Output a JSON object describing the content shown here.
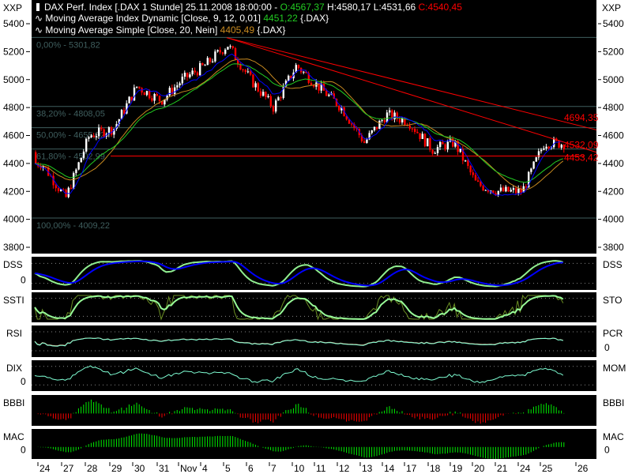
{
  "header": {
    "title": "DAX Perf. Index [.DAX  1 Stunde] 25.11.2008 18:00:00 -",
    "open": "O:4567,37",
    "high": "H:4580,17",
    "low": "L:4531,66",
    "close": "C:4540,45",
    "ma_dynamic_label": "Moving Average Index Dynamic [Close, 9, 12, 0,01]",
    "ma_dynamic_value": "4451,22",
    "ma_dynamic_suffix": "{.DAX}",
    "ma_simple_label": "Moving Average Simple [Close, 20, Nein]",
    "ma_simple_value": "4405,49",
    "ma_simple_suffix": "{.DAX}"
  },
  "axis_unit_left": "XXP",
  "axis_unit_right": "XXP",
  "colors": {
    "up": "#ffffff",
    "down": "#ff0000",
    "ma_dynamic": "#22cc22",
    "ma_simple": "#c88a20",
    "blue": "#0000ff",
    "fib": "#3f5e5e",
    "trend": "#ff0000"
  },
  "chart_data": {
    "type": "candlestick",
    "title": "DAX Perf. Index [.DAX 1 Stunde]",
    "ylim": [
      3800,
      5400
    ],
    "yticks": [
      "5400",
      "5200",
      "5000",
      "4800",
      "4600",
      "4400",
      "4200",
      "4000",
      "3800"
    ],
    "ytick_values": [
      5400,
      5200,
      5000,
      4800,
      4600,
      4400,
      4200,
      4000,
      3800
    ],
    "xtick_labels": [
      "24",
      "27",
      "28",
      "29",
      "30",
      "31",
      "Nov",
      "4",
      "5",
      "6",
      "7",
      "10",
      "11",
      "12",
      "13",
      "14",
      "17",
      "18",
      "19",
      "20",
      "21",
      "24",
      "25",
      "26"
    ],
    "daily_close_path": [
      4400,
      4150,
      4600,
      4650,
      4950,
      4850,
      5000,
      5100,
      5250,
      5000,
      4800,
      5100,
      4950,
      4800,
      4550,
      4750,
      4700,
      4500,
      4550,
      4250,
      4200,
      4200,
      4550,
      4540
    ],
    "fibonacci": [
      {
        "label": "0,00% - 5301,82",
        "value": 5301.82
      },
      {
        "label": "38,20% - 4808,05",
        "value": 4808.05
      },
      {
        "label": "50,00% - 4655,52",
        "value": 4655.52
      },
      {
        "label": "61,80% - 4502,99",
        "value": 4502.99
      },
      {
        "label": "100,00% - 4009,22",
        "value": 4009.22
      }
    ],
    "trend_labels": [
      {
        "label": "4694,35",
        "value": 4694.35
      },
      {
        "label": "4532,09",
        "value": 4532.09
      },
      {
        "label": "4453,42",
        "value": 4453.42
      }
    ],
    "panels": [
      {
        "left": "DSS",
        "right": "DSS",
        "zero_left": "0",
        "zero_right": ""
      },
      {
        "left": "SSTI",
        "right": "STO",
        "zero_left": "",
        "zero_right": ""
      },
      {
        "left": "RSI",
        "right": "PCR",
        "zero_left": "",
        "zero_right": "0"
      },
      {
        "left": "DIX",
        "right": "MOM",
        "zero_left": "0",
        "zero_right": ""
      },
      {
        "left": "BBBI",
        "right": "BBBI",
        "zero_left": "",
        "zero_right": ""
      },
      {
        "left": "MAC",
        "right": "MAC",
        "zero_left": "0",
        "zero_right": "0"
      }
    ]
  }
}
